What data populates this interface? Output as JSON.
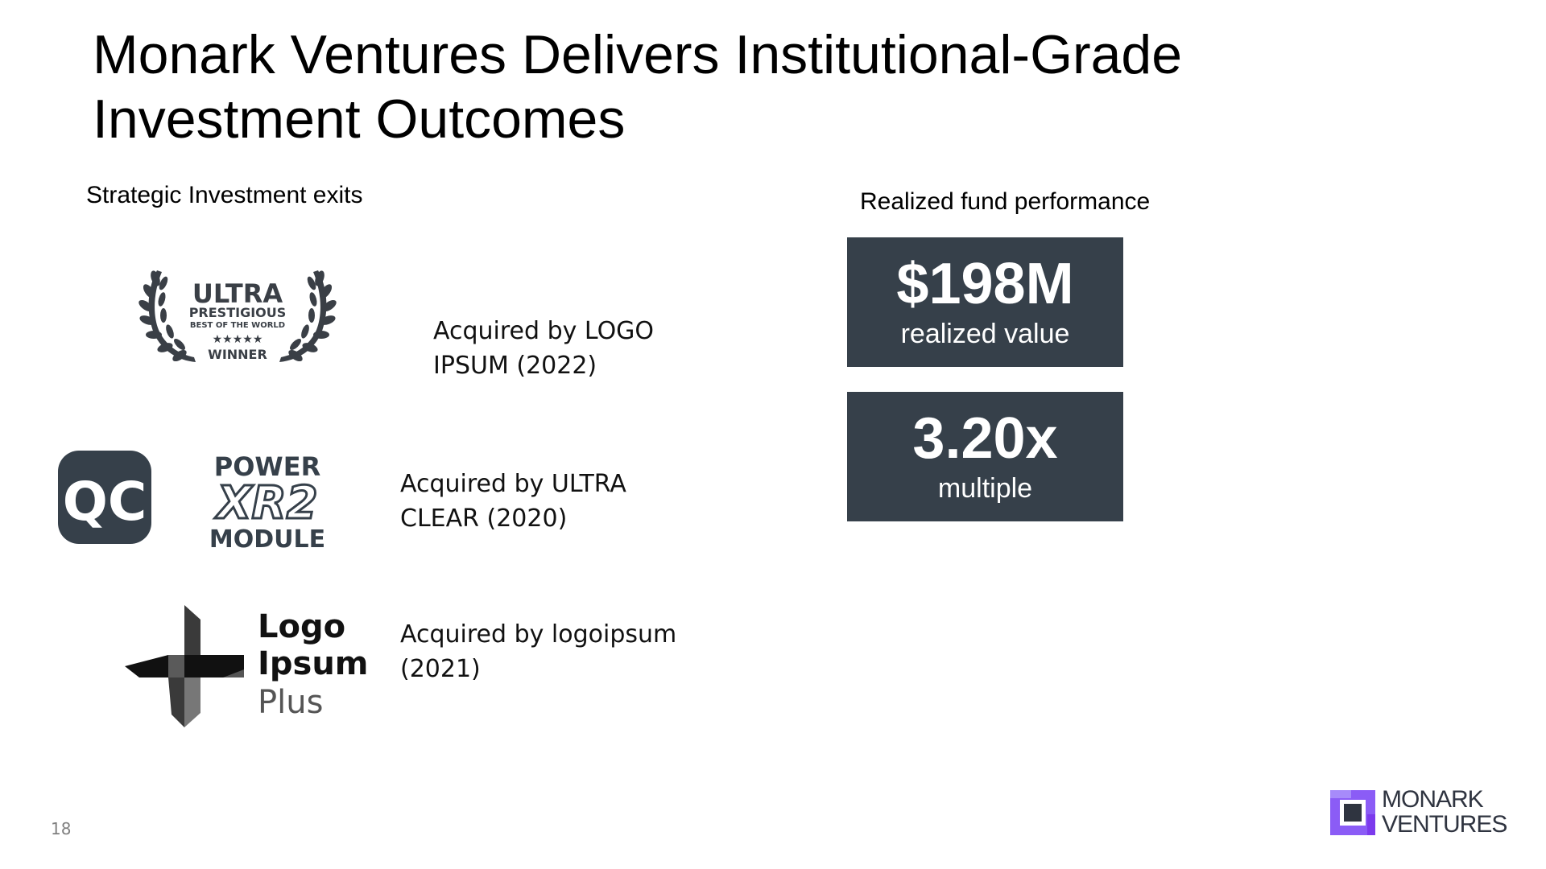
{
  "slide": {
    "title_line1": "Monark Ventures Delivers Institutional-Grade",
    "title_line2": "Investment Outcomes",
    "page_number": "18"
  },
  "exits": {
    "heading": "Strategic Investment exits",
    "items": [
      {
        "logo_icon": "laurel-wreath-award-logo",
        "logo_text": [
          "ULTRA",
          "PRESTIGIOUS",
          "BEST OF THE WORLD",
          "★★★★★",
          "WINNER"
        ],
        "acquired_line1": "Acquired by LOGO",
        "acquired_line2": "IPSUM (2022)"
      },
      {
        "logo_icon": "qc-badge-logo",
        "logo_text": [
          "QC",
          "POWER",
          "XR2",
          "MODULE"
        ],
        "acquired_line1": "Acquired by ULTRA",
        "acquired_line2": "CLEAR (2020)"
      },
      {
        "logo_icon": "cross-blocks-logo",
        "logo_text": [
          "Logo",
          "Ipsum",
          "Plus"
        ],
        "acquired_line1": "Acquired by logoipsum",
        "acquired_line2": "(2021)"
      }
    ]
  },
  "performance": {
    "heading": "Realized fund performance",
    "metrics": [
      {
        "value": "$198M",
        "label": "realized value"
      },
      {
        "value": "3.20x",
        "label": "multiple"
      }
    ],
    "card_color": "#36404a"
  },
  "brand": {
    "line1": "MONARK",
    "line2": "VENTURES",
    "mark_color": "#8b5cf6",
    "text_color": "#2f3440"
  }
}
